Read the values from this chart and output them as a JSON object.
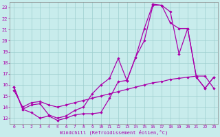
{
  "xlabel": "Windchill (Refroidissement éolien,°C)",
  "bg_color": "#c8ecec",
  "line_color": "#aa00aa",
  "grid_color": "#9ecece",
  "x_ticks": [
    0,
    1,
    2,
    3,
    4,
    5,
    6,
    7,
    8,
    9,
    10,
    11,
    12,
    13,
    14,
    15,
    16,
    17,
    18,
    19,
    20,
    21,
    22,
    23
  ],
  "y_ticks": [
    13,
    14,
    15,
    16,
    17,
    18,
    19,
    20,
    21,
    22,
    23
  ],
  "ylim": [
    12.5,
    23.5
  ],
  "xlim": [
    -0.5,
    23.5
  ],
  "line1_x": [
    0,
    1,
    2,
    3,
    4,
    5,
    6,
    7,
    8,
    9,
    10,
    11,
    12,
    13,
    14,
    15,
    16,
    17,
    18,
    19,
    20,
    21,
    22,
    23
  ],
  "line1_y": [
    15.8,
    13.8,
    13.5,
    13.0,
    13.2,
    12.8,
    13.0,
    13.3,
    13.4,
    13.4,
    13.5,
    14.8,
    16.3,
    16.4,
    18.5,
    21.1,
    23.3,
    23.2,
    22.6,
    18.8,
    21.1,
    16.7,
    15.7,
    16.7
  ],
  "line2_x": [
    0,
    1,
    2,
    3,
    4,
    5,
    6,
    7,
    8,
    9,
    10,
    11,
    12,
    13,
    14,
    15,
    16,
    17,
    18,
    19,
    20,
    21,
    22,
    23
  ],
  "line2_y": [
    15.8,
    13.8,
    14.2,
    14.3,
    13.3,
    13.0,
    13.2,
    13.7,
    14.0,
    15.2,
    16.0,
    16.6,
    18.4,
    16.4,
    18.5,
    20.0,
    23.2,
    23.2,
    21.6,
    21.1,
    21.1,
    16.7,
    15.7,
    16.7
  ],
  "line3_x": [
    0,
    1,
    2,
    3,
    4,
    5,
    6,
    7,
    8,
    9,
    10,
    11,
    12,
    13,
    14,
    15,
    16,
    17,
    18,
    19,
    20,
    21,
    22,
    23
  ],
  "line3_y": [
    15.5,
    14.0,
    14.4,
    14.5,
    14.2,
    14.0,
    14.2,
    14.4,
    14.6,
    14.8,
    15.0,
    15.2,
    15.4,
    15.6,
    15.8,
    16.0,
    16.2,
    16.3,
    16.5,
    16.6,
    16.7,
    16.8,
    16.8,
    15.7
  ]
}
